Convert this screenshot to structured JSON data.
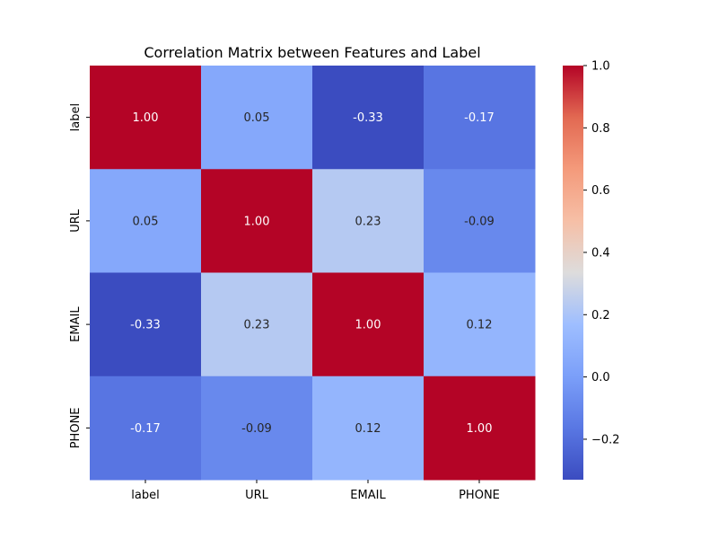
{
  "chart_data": {
    "type": "heatmap",
    "title": "Correlation Matrix between Features and Label",
    "rows": [
      "label",
      "URL",
      "EMAIL",
      "PHONE"
    ],
    "columns": [
      "label",
      "URL",
      "EMAIL",
      "PHONE"
    ],
    "values": [
      [
        1.0,
        0.05,
        -0.33,
        -0.17
      ],
      [
        0.05,
        1.0,
        0.23,
        -0.09
      ],
      [
        -0.33,
        0.23,
        1.0,
        0.12
      ],
      [
        -0.17,
        -0.09,
        0.12,
        1.0
      ]
    ],
    "cell_labels": [
      [
        "1.00",
        "0.05",
        "-0.33",
        "-0.17"
      ],
      [
        "0.05",
        "1.00",
        "0.23",
        "-0.09"
      ],
      [
        "-0.33",
        "0.23",
        "1.00",
        "0.12"
      ],
      [
        "-0.17",
        "-0.09",
        "0.12",
        "1.00"
      ]
    ],
    "colormap": "coolwarm",
    "colorbar": {
      "vmin": -0.33,
      "vmax": 1.0,
      "ticks": [
        -0.2,
        0.0,
        0.2,
        0.4,
        0.6,
        0.8,
        1.0
      ],
      "tick_labels": [
        "−0.2",
        "0.0",
        "0.2",
        "0.4",
        "0.6",
        "0.8",
        "1.0"
      ]
    }
  }
}
